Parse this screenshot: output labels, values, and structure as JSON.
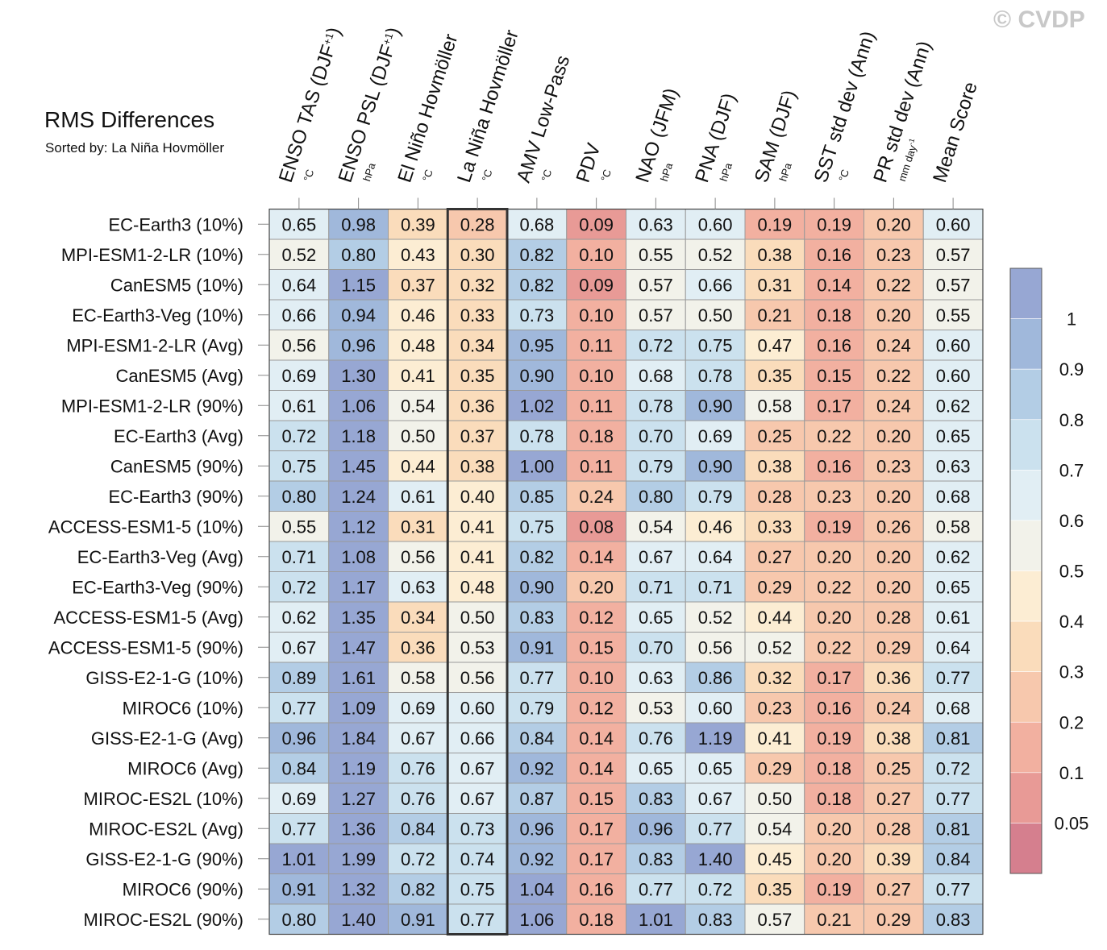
{
  "watermark": "© CVDP",
  "chart_data": {
    "type": "heatmap",
    "title": "RMS Differences",
    "subtitle": "Sorted by: La Niña Hovmöller",
    "highlight_column": 3,
    "columns": [
      {
        "label": "ENSO TAS (DJF",
        "sup": "+1",
        "close": ")",
        "unit": "°C"
      },
      {
        "label": "ENSO PSL (DJF",
        "sup": "+1",
        "close": ")",
        "unit": "hPa"
      },
      {
        "label": "El Niño Hovmöller",
        "sup": "",
        "close": "",
        "unit": "°C"
      },
      {
        "label": "La Niña Hovmöller",
        "sup": "",
        "close": "",
        "unit": "°C"
      },
      {
        "label": "AMV Low-Pass",
        "sup": "",
        "close": "",
        "unit": "°C"
      },
      {
        "label": "PDV",
        "sup": "",
        "close": "",
        "unit": "°C"
      },
      {
        "label": "NAO (JFM)",
        "sup": "",
        "close": "",
        "unit": "hPa"
      },
      {
        "label": "PNA (DJF)",
        "sup": "",
        "close": "",
        "unit": "hPa"
      },
      {
        "label": "SAM (DJF)",
        "sup": "",
        "close": "",
        "unit": "hPa"
      },
      {
        "label": "SST std dev (Ann)",
        "sup": "",
        "close": "",
        "unit": "°C"
      },
      {
        "label": "PR std dev (Ann)",
        "sup": "",
        "close": "",
        "unit": "mm day",
        "unit_sup": "-1"
      },
      {
        "label": "Mean Score",
        "sup": "",
        "close": "",
        "unit": ""
      }
    ],
    "rows": [
      "EC-Earth3 (10%)",
      "MPI-ESM1-2-LR (10%)",
      "CanESM5 (10%)",
      "EC-Earth3-Veg (10%)",
      "MPI-ESM1-2-LR (Avg)",
      "CanESM5 (Avg)",
      "MPI-ESM1-2-LR (90%)",
      "EC-Earth3 (Avg)",
      "CanESM5 (90%)",
      "EC-Earth3 (90%)",
      "ACCESS-ESM1-5 (10%)",
      "EC-Earth3-Veg (Avg)",
      "EC-Earth3-Veg (90%)",
      "ACCESS-ESM1-5 (Avg)",
      "ACCESS-ESM1-5 (90%)",
      "GISS-E2-1-G (10%)",
      "MIROC6 (10%)",
      "GISS-E2-1-G (Avg)",
      "MIROC6 (Avg)",
      "MIROC-ES2L (10%)",
      "MIROC-ES2L (Avg)",
      "GISS-E2-1-G (90%)",
      "MIROC6 (90%)",
      "MIROC-ES2L (90%)"
    ],
    "values": [
      [
        "0.65",
        "0.98",
        "0.39",
        "0.28",
        "0.68",
        "0.09",
        "0.63",
        "0.60",
        "0.19",
        "0.19",
        "0.20",
        "0.60"
      ],
      [
        "0.52",
        "0.80",
        "0.43",
        "0.30",
        "0.82",
        "0.10",
        "0.55",
        "0.52",
        "0.38",
        "0.16",
        "0.23",
        "0.57"
      ],
      [
        "0.64",
        "1.15",
        "0.37",
        "0.32",
        "0.82",
        "0.09",
        "0.57",
        "0.66",
        "0.31",
        "0.14",
        "0.22",
        "0.57"
      ],
      [
        "0.66",
        "0.94",
        "0.46",
        "0.33",
        "0.73",
        "0.10",
        "0.57",
        "0.50",
        "0.21",
        "0.18",
        "0.20",
        "0.55"
      ],
      [
        "0.56",
        "0.96",
        "0.48",
        "0.34",
        "0.95",
        "0.11",
        "0.72",
        "0.75",
        "0.47",
        "0.16",
        "0.24",
        "0.60"
      ],
      [
        "0.69",
        "1.30",
        "0.41",
        "0.35",
        "0.90",
        "0.10",
        "0.68",
        "0.78",
        "0.35",
        "0.15",
        "0.22",
        "0.60"
      ],
      [
        "0.61",
        "1.06",
        "0.54",
        "0.36",
        "1.02",
        "0.11",
        "0.78",
        "0.90",
        "0.58",
        "0.17",
        "0.24",
        "0.62"
      ],
      [
        "0.72",
        "1.18",
        "0.50",
        "0.37",
        "0.78",
        "0.18",
        "0.70",
        "0.69",
        "0.25",
        "0.22",
        "0.20",
        "0.65"
      ],
      [
        "0.75",
        "1.45",
        "0.44",
        "0.38",
        "1.00",
        "0.11",
        "0.79",
        "0.90",
        "0.38",
        "0.16",
        "0.23",
        "0.63"
      ],
      [
        "0.80",
        "1.24",
        "0.61",
        "0.40",
        "0.85",
        "0.24",
        "0.80",
        "0.79",
        "0.28",
        "0.23",
        "0.20",
        "0.68"
      ],
      [
        "0.55",
        "1.12",
        "0.31",
        "0.41",
        "0.75",
        "0.08",
        "0.54",
        "0.46",
        "0.33",
        "0.19",
        "0.26",
        "0.58"
      ],
      [
        "0.71",
        "1.08",
        "0.56",
        "0.41",
        "0.82",
        "0.14",
        "0.67",
        "0.64",
        "0.27",
        "0.20",
        "0.20",
        "0.62"
      ],
      [
        "0.72",
        "1.17",
        "0.63",
        "0.48",
        "0.90",
        "0.20",
        "0.71",
        "0.71",
        "0.29",
        "0.22",
        "0.20",
        "0.65"
      ],
      [
        "0.62",
        "1.35",
        "0.34",
        "0.50",
        "0.83",
        "0.12",
        "0.65",
        "0.52",
        "0.44",
        "0.20",
        "0.28",
        "0.61"
      ],
      [
        "0.67",
        "1.47",
        "0.36",
        "0.53",
        "0.91",
        "0.15",
        "0.70",
        "0.56",
        "0.52",
        "0.22",
        "0.29",
        "0.64"
      ],
      [
        "0.89",
        "1.61",
        "0.58",
        "0.56",
        "0.77",
        "0.10",
        "0.63",
        "0.86",
        "0.32",
        "0.17",
        "0.36",
        "0.77"
      ],
      [
        "0.77",
        "1.09",
        "0.69",
        "0.60",
        "0.79",
        "0.12",
        "0.53",
        "0.60",
        "0.23",
        "0.16",
        "0.24",
        "0.68"
      ],
      [
        "0.96",
        "1.84",
        "0.67",
        "0.66",
        "0.84",
        "0.14",
        "0.76",
        "1.19",
        "0.41",
        "0.19",
        "0.38",
        "0.81"
      ],
      [
        "0.84",
        "1.19",
        "0.76",
        "0.67",
        "0.92",
        "0.14",
        "0.65",
        "0.65",
        "0.29",
        "0.18",
        "0.25",
        "0.72"
      ],
      [
        "0.69",
        "1.27",
        "0.76",
        "0.67",
        "0.87",
        "0.15",
        "0.83",
        "0.67",
        "0.50",
        "0.18",
        "0.27",
        "0.77"
      ],
      [
        "0.77",
        "1.36",
        "0.84",
        "0.73",
        "0.96",
        "0.17",
        "0.96",
        "0.77",
        "0.54",
        "0.20",
        "0.28",
        "0.81"
      ],
      [
        "1.01",
        "1.99",
        "0.72",
        "0.74",
        "0.92",
        "0.17",
        "0.83",
        "1.40",
        "0.45",
        "0.20",
        "0.39",
        "0.84"
      ],
      [
        "0.91",
        "1.32",
        "0.82",
        "0.75",
        "1.04",
        "0.16",
        "0.77",
        "0.72",
        "0.35",
        "0.19",
        "0.27",
        "0.77"
      ],
      [
        "0.80",
        "1.40",
        "0.91",
        "0.77",
        "1.06",
        "0.18",
        "1.01",
        "0.83",
        "0.57",
        "0.21",
        "0.29",
        "0.83"
      ]
    ],
    "colorbar": {
      "levels": [
        0.05,
        0.1,
        0.2,
        0.3,
        0.4,
        0.5,
        0.6,
        0.7,
        0.8,
        0.9,
        1
      ],
      "labels": [
        "0.05",
        "0.1",
        "0.2",
        "0.3",
        "0.4",
        "0.5",
        "0.6",
        "0.7",
        "0.8",
        "0.9",
        "1"
      ],
      "colors": [
        "#d57f8e",
        "#e89a96",
        "#f2b0a0",
        "#f7c8ad",
        "#fadcbb",
        "#fcedd3",
        "#f2f2ea",
        "#e1eef4",
        "#cbe1ee",
        "#b3cde5",
        "#a0b8db",
        "#97a7d3"
      ]
    }
  }
}
